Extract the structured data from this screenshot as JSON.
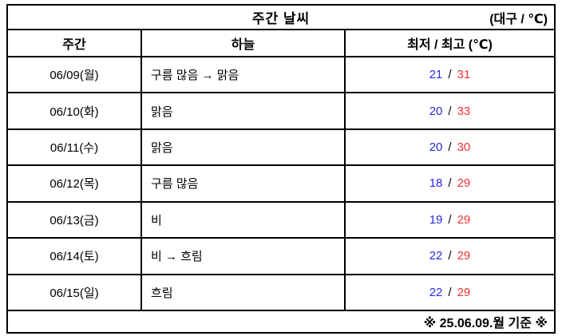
{
  "table": {
    "title": "주간 날씨",
    "title_right": "(대구 / ℃)",
    "columns": [
      "주간",
      "하늘",
      "최저 / 최고 (℃)"
    ],
    "temp_separator": "/",
    "rows": [
      {
        "date": "06/09(월)",
        "sky": "구름 많음 → 맑음",
        "low": "21",
        "high": "31"
      },
      {
        "date": "06/10(화)",
        "sky": "맑음",
        "low": "20",
        "high": "33"
      },
      {
        "date": "06/11(수)",
        "sky": "맑음",
        "low": "20",
        "high": "30"
      },
      {
        "date": "06/12(목)",
        "sky": "구름 많음",
        "low": "18",
        "high": "29"
      },
      {
        "date": "06/13(금)",
        "sky": "비",
        "low": "19",
        "high": "29"
      },
      {
        "date": "06/14(토)",
        "sky": "비 → 흐림",
        "low": "22",
        "high": "29"
      },
      {
        "date": "06/15(일)",
        "sky": "흐림",
        "low": "22",
        "high": "29"
      }
    ],
    "footer": "※ 25.06.09.월 기준 ※",
    "colors": {
      "low_temp": "#2929dd",
      "high_temp": "#ee3333",
      "border": "#000000",
      "text": "#000000",
      "background": "#ffffff"
    }
  }
}
